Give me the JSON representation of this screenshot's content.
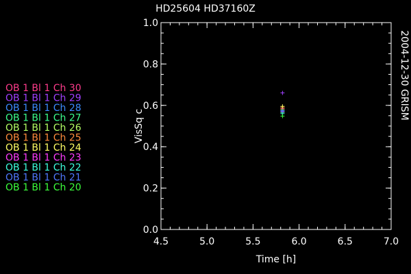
{
  "chart_data": {
    "type": "scatter",
    "title": "HD25604   HD37160Z",
    "side_label": "2004-12-30 GRISM",
    "xlabel": "Time [h]",
    "ylabel": "VisSq c",
    "xlim": [
      4.5,
      7.0
    ],
    "ylim": [
      0.0,
      1.0
    ],
    "xticks": [
      4.5,
      5.0,
      5.5,
      6.0,
      6.5,
      7.0
    ],
    "yticks": [
      0.0,
      0.2,
      0.4,
      0.6,
      0.8,
      1.0
    ],
    "xtick_labels": [
      "4.5",
      "5.0",
      "5.5",
      "6.0",
      "6.5",
      "7.0"
    ],
    "ytick_labels": [
      "0.0",
      "0.2",
      "0.4",
      "0.6",
      "0.8",
      "1.0"
    ],
    "grid": false,
    "legend_position": "left",
    "series": [
      {
        "name": "OB 1 Bl 1 Ch 30",
        "color": "#ff3c8c",
        "x": [
          5.82
        ],
        "y": [
          0.585
        ]
      },
      {
        "name": "OB 1 Bl 1 Ch 29",
        "color": "#a040ff",
        "x": [
          5.82
        ],
        "y": [
          0.66
        ]
      },
      {
        "name": "OB 1 Bl 1 Ch 28",
        "color": "#3c8cff",
        "x": [
          5.82
        ],
        "y": [
          0.575
        ]
      },
      {
        "name": "OB 1 Bl 1 Ch 27",
        "color": "#3cff8c",
        "x": [
          5.82
        ],
        "y": [
          0.565
        ]
      },
      {
        "name": "OB 1 Bl 1 Ch 26",
        "color": "#b4ff64",
        "x": [
          5.82
        ],
        "y": [
          0.58
        ]
      },
      {
        "name": "OB 1 Bl 1 Ch 25",
        "color": "#ff8c3c",
        "x": [
          5.82
        ],
        "y": [
          0.59
        ]
      },
      {
        "name": "OB 1 Bl 1 Ch 24",
        "color": "#ffff64",
        "x": [
          5.82
        ],
        "y": [
          0.595
        ]
      },
      {
        "name": "OB 1 Bl 1 Ch 23",
        "color": "#ff3cff",
        "x": [
          5.82
        ],
        "y": [
          0.57
        ]
      },
      {
        "name": "OB 1 Bl 1 Ch 22",
        "color": "#3cffdc",
        "x": [
          5.82
        ],
        "y": [
          0.56
        ]
      },
      {
        "name": "OB 1 Bl 1 Ch 21",
        "color": "#5078ff",
        "x": [
          5.82
        ],
        "y": [
          0.572
        ]
      },
      {
        "name": "OB 1 Bl 1 Ch 20",
        "color": "#3cff3c",
        "x": [
          5.82
        ],
        "y": [
          0.548
        ]
      }
    ]
  }
}
